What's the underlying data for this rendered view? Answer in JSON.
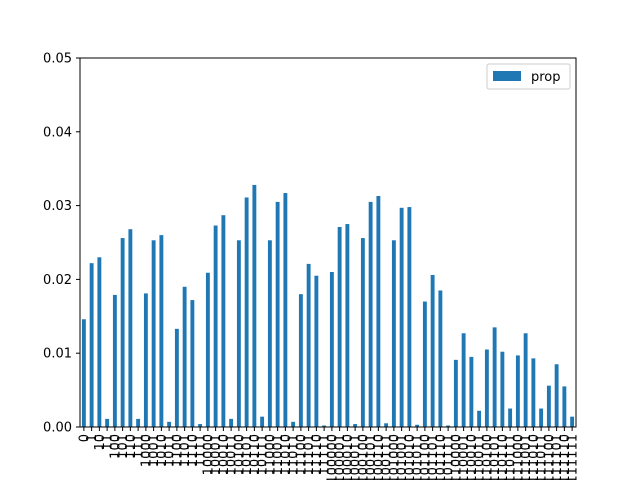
{
  "chart_data": {
    "type": "bar",
    "title": "",
    "xlabel": "",
    "ylabel": "",
    "ylim": [
      0,
      0.05
    ],
    "yticks": [
      "0.00",
      "0.01",
      "0.02",
      "0.03",
      "0.04",
      "0.05"
    ],
    "legend": {
      "placement": "top-right",
      "entries": [
        "prop"
      ]
    },
    "bar_color": "#1f77b4",
    "grid": false,
    "categories": [
      "0",
      "1",
      "10",
      "11",
      "100",
      "101",
      "110",
      "111",
      "1000",
      "1001",
      "1010",
      "1011",
      "1100",
      "1101",
      "1110",
      "1111",
      "10000",
      "10001",
      "10010",
      "10011",
      "10100",
      "10101",
      "10110",
      "10111",
      "11000",
      "11001",
      "11010",
      "11011",
      "11100",
      "11101",
      "11110",
      "11111",
      "100000",
      "100001",
      "100010",
      "100011",
      "100100",
      "100101",
      "100110",
      "100111",
      "101000",
      "101001",
      "101010",
      "101011",
      "101100",
      "101101",
      "101110",
      "101111",
      "110000",
      "110001",
      "110010",
      "110011",
      "110100",
      "110101",
      "110110",
      "110111",
      "111000",
      "111001",
      "111010",
      "111011",
      "111100",
      "111101",
      "111110",
      "111111"
    ],
    "series": [
      {
        "name": "prop",
        "values": [
          0.0146,
          0.0222,
          0.023,
          0.0011,
          0.0179,
          0.0256,
          0.0268,
          0.0011,
          0.0181,
          0.0253,
          0.026,
          0.0007,
          0.0133,
          0.019,
          0.0172,
          0.0004,
          0.0209,
          0.0273,
          0.0287,
          0.0011,
          0.0253,
          0.0311,
          0.0328,
          0.0014,
          0.0253,
          0.0305,
          0.0317,
          0.0007,
          0.018,
          0.0221,
          0.0205,
          0.0002,
          0.021,
          0.0271,
          0.0275,
          0.0004,
          0.0256,
          0.0305,
          0.0313,
          0.0005,
          0.0253,
          0.0297,
          0.0298,
          0.0003,
          0.017,
          0.0206,
          0.0185,
          0.0002,
          0.0091,
          0.0127,
          0.0095,
          0.0022,
          0.0105,
          0.0135,
          0.0102,
          0.0025,
          0.0097,
          0.0127,
          0.0093,
          0.0025,
          0.0056,
          0.0085,
          0.0055,
          0.0014
        ]
      }
    ]
  }
}
